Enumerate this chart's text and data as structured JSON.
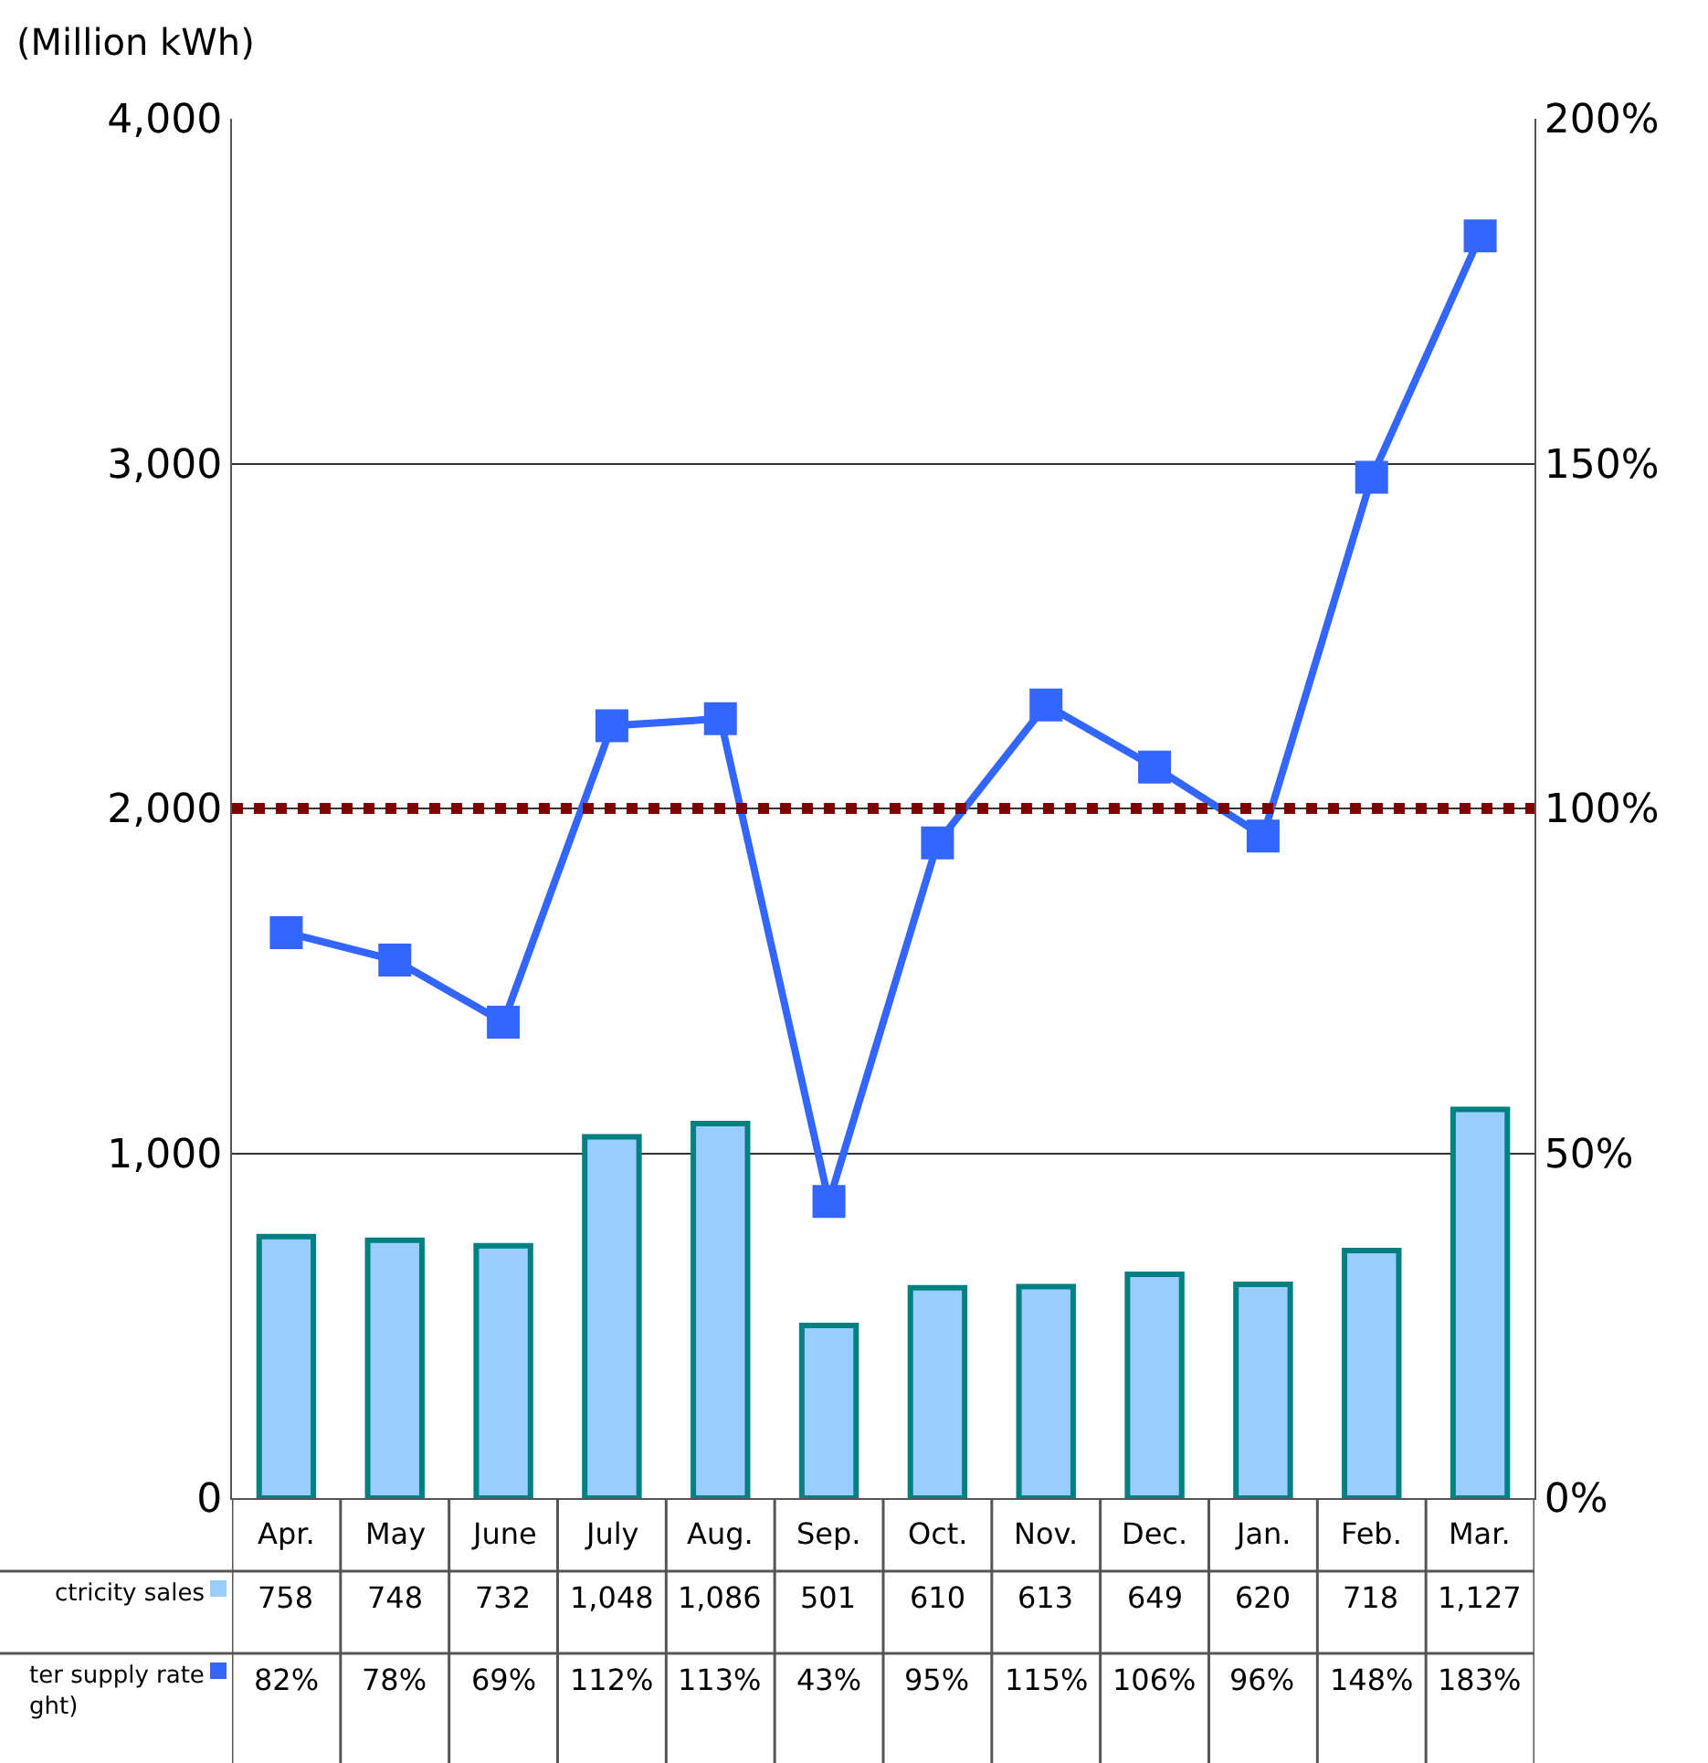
{
  "chart_data": {
    "type": "bar",
    "ylabel": "(Million kWh)",
    "categories": [
      "Apr.",
      "May",
      "June",
      "July",
      "Aug.",
      "Sep.",
      "Oct.",
      "Nov.",
      "Dec.",
      "Jan.",
      "Feb.",
      "Mar."
    ],
    "series": [
      {
        "name": "ctricity sales",
        "color": "#99ccff",
        "values": [
          758,
          748,
          732,
          1048,
          1086,
          501,
          610,
          613,
          649,
          620,
          718,
          1127
        ],
        "value_labels": [
          "758",
          "748",
          "732",
          "1,048",
          "1,086",
          "501",
          "610",
          "613",
          "649",
          "620",
          "718",
          "1,127"
        ]
      },
      {
        "name": "ter supply rate\nght)",
        "type": "line",
        "axis": "y2",
        "color": "#3366ff",
        "marker": "square",
        "values": [
          82,
          78,
          69,
          112,
          113,
          43,
          95,
          115,
          106,
          96,
          148,
          183
        ],
        "value_labels": [
          "82%",
          "78%",
          "69%",
          "112%",
          "113%",
          "43%",
          "95%",
          "115%",
          "106%",
          "96%",
          "148%",
          "183%"
        ]
      }
    ],
    "ylim": [
      0,
      4000
    ],
    "yticks": [
      0,
      {
        "value": 1000,
        "label": "1,000"
      },
      {
        "value": 2000,
        "label": "2,000"
      },
      {
        "value": 3000,
        "label": "3,000"
      },
      {
        "value": 4000,
        "label": "4,000"
      }
    ],
    "y2lim": [
      0,
      200
    ],
    "y2ticks": [
      {
        "value": 0,
        "label": "0%"
      },
      {
        "value": 50,
        "label": "50%"
      },
      {
        "value": 100,
        "label": "100%"
      },
      {
        "value": 150,
        "label": "150%"
      },
      {
        "value": 200,
        "label": "200%"
      }
    ],
    "ref_lines": [
      {
        "axis": "y2",
        "value": 100,
        "color": "#800000",
        "line_style": "dotted"
      }
    ],
    "grid": "y",
    "legend": "bottom left",
    "data_labels": true
  }
}
